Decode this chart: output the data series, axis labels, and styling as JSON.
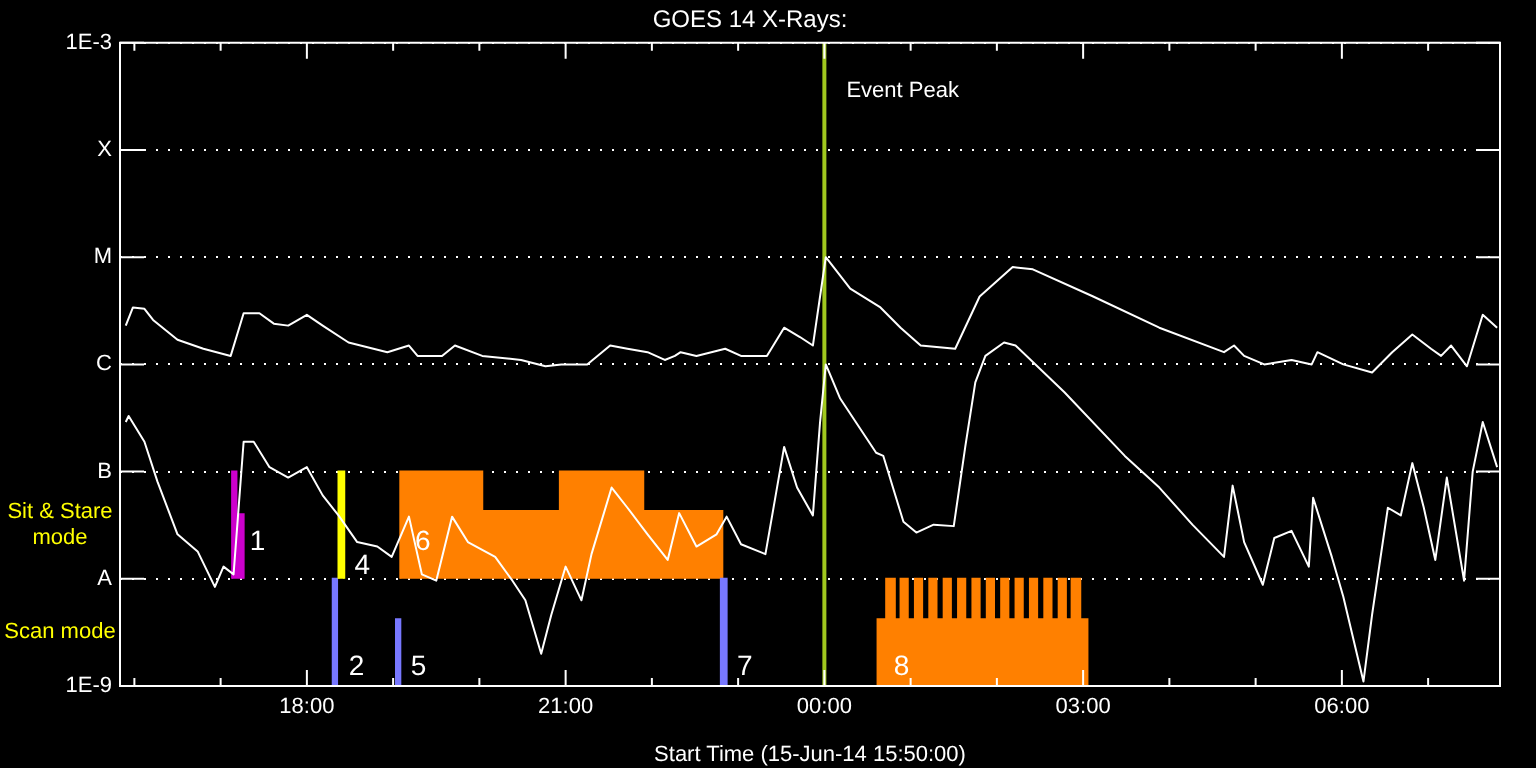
{
  "chart_data": {
    "type": "line",
    "title": "GOES 14 X-Rays:",
    "xlabel": "Start Time (15-Jun-14 15:50:00)",
    "xlim": [
      "--06-15T15:50",
      "--06-16T07:50"
    ],
    "xticks": [
      {
        "value": "--06-15T16:00",
        "label": null
      },
      {
        "value": "--06-15T17:00",
        "label": null
      },
      {
        "value": "--06-15T18:00",
        "label": "18:00"
      },
      {
        "value": "--06-15T19:00",
        "label": null
      },
      {
        "value": "--06-15T20:00",
        "label": null
      },
      {
        "value": "--06-15T21:00",
        "label": "21:00"
      },
      {
        "value": "--06-15T22:00",
        "label": null
      },
      {
        "value": "--06-15T23:00",
        "label": null
      },
      {
        "value": "--06-16T00:00",
        "label": "00:00"
      },
      {
        "value": "--06-16T01:00",
        "label": null
      },
      {
        "value": "--06-16T02:00",
        "label": null
      },
      {
        "value": "--06-16T03:00",
        "label": "03:00"
      },
      {
        "value": "--06-16T04:00",
        "label": null
      },
      {
        "value": "--06-16T05:00",
        "label": null
      },
      {
        "value": "--06-16T06:00",
        "label": "06:00"
      },
      {
        "value": "--06-16T07:00",
        "label": null
      }
    ],
    "ylim": [
      1e-09,
      0.001
    ],
    "yticks": [
      {
        "value": 1e-09,
        "label": "1E-9"
      },
      {
        "value": 1e-08,
        "label": "A"
      },
      {
        "value": 1e-07,
        "label": "B"
      },
      {
        "value": 1e-06,
        "label": "C"
      },
      {
        "value": 1e-05,
        "label": "M"
      },
      {
        "value": 0.0001,
        "label": "X"
      },
      {
        "value": 0.001,
        "label": "1E-3"
      }
    ],
    "log": true,
    "grid": "y",
    "marker": "none",
    "series": [
      {
        "type": "line",
        "color": "#ffffff",
        "x": [
          "--06-15T15:54",
          "--06-15T15:59",
          "--06-15T16:07",
          "--06-15T16:13",
          "--06-15T16:30",
          "--06-15T16:48",
          "--06-15T17:07",
          "--06-15T17:16",
          "--06-15T17:27",
          "--06-15T17:37",
          "--06-15T17:47",
          "--06-15T18:00",
          "--06-15T18:11",
          "--06-15T18:29",
          "--06-15T18:56",
          "--06-15T19:11",
          "--06-15T19:17",
          "--06-15T19:34",
          "--06-15T19:43",
          "--06-15T20:02",
          "--06-15T20:29",
          "--06-15T20:46",
          "--06-15T20:57",
          "--06-15T21:15",
          "--06-15T21:31",
          "--06-15T21:43",
          "--06-15T21:57",
          "--06-15T22:09",
          "--06-15T22:16",
          "--06-15T22:20",
          "--06-15T22:31",
          "--06-15T22:51",
          "--06-15T23:02",
          "--06-15T23:20",
          "--06-15T23:32",
          "--06-15T23:43",
          "--06-15T23:52",
          "--06-15T23:57",
          "--06-16T00:01",
          "--06-16T00:18",
          "--06-16T00:39",
          "--06-16T00:53",
          "--06-16T01:07",
          "--06-16T01:31",
          "--06-16T01:48",
          "--06-16T02:11",
          "--06-16T02:25",
          "--06-16T03:07",
          "--06-16T03:53",
          "--06-16T04:38",
          "--06-16T04:45",
          "--06-16T04:52",
          "--06-16T05:06",
          "--06-16T05:25",
          "--06-16T05:39",
          "--06-16T05:43",
          "--06-16T06:01",
          "--06-16T06:21",
          "--06-16T06:35",
          "--06-16T06:49",
          "--06-16T07:02",
          "--06-16T07:09",
          "--06-16T07:16",
          "--06-16T07:27",
          "--06-16T07:38",
          "--06-16T07:48"
        ],
        "values": [
          2.3e-06,
          3.4e-06,
          3.3e-06,
          2.6e-06,
          1.7e-06,
          1.4e-06,
          1.2e-06,
          3e-06,
          3e-06,
          2.4e-06,
          2.3e-06,
          2.9e-06,
          2.3e-06,
          1.6e-06,
          1.3e-06,
          1.5e-06,
          1.2e-06,
          1.2e-06,
          1.5e-06,
          1.2e-06,
          1.1e-06,
          9.6e-07,
          1e-06,
          1e-06,
          1.5e-06,
          1.4e-06,
          1.3e-06,
          1.1e-06,
          1.2e-06,
          1.3e-06,
          1.2e-06,
          1.4e-06,
          1.2e-06,
          1.2e-06,
          2.2e-06,
          1.8e-06,
          1.5e-06,
          4.3e-06,
          1e-05,
          5.1e-06,
          3.4e-06,
          2.2e-06,
          1.5e-06,
          1.4e-06,
          4.3e-06,
          8.1e-06,
          7.7e-06,
          4.3e-06,
          2.2e-06,
          1.3e-06,
          1.5e-06,
          1.2e-06,
          1e-06,
          1.1e-06,
          1e-06,
          1.3e-06,
          1e-06,
          8.4e-07,
          1.3e-06,
          1.9e-06,
          1.4e-06,
          1.2e-06,
          1.5e-06,
          9.6e-07,
          2.9e-06,
          2.2e-06
        ]
      },
      {
        "type": "line",
        "color": "#ffffff",
        "x": [
          "--06-15T15:54",
          "--06-15T15:56",
          "--06-15T16:07",
          "--06-15T16:16",
          "--06-15T16:30",
          "--06-15T16:44",
          "--06-15T16:56",
          "--06-15T17:02",
          "--06-15T17:09",
          "--06-15T17:16",
          "--06-15T17:23",
          "--06-15T17:34",
          "--06-15T17:47",
          "--06-15T18:00",
          "--06-15T18:11",
          "--06-15T18:22",
          "--06-15T18:35",
          "--06-15T18:49",
          "--06-15T18:59",
          "--06-15T19:11",
          "--06-15T19:20",
          "--06-15T19:30",
          "--06-15T19:41",
          "--06-15T19:52",
          "--06-15T20:11",
          "--06-15T20:23",
          "--06-15T20:32",
          "--06-15T20:43",
          "--06-15T20:50",
          "--06-15T21:00",
          "--06-15T21:11",
          "--06-15T21:18",
          "--06-15T21:32",
          "--06-15T21:43",
          "--06-15T21:57",
          "--06-15T22:11",
          "--06-15T22:19",
          "--06-15T22:31",
          "--06-15T22:45",
          "--06-15T22:52",
          "--06-15T23:02",
          "--06-15T23:19",
          "--06-15T23:32",
          "--06-15T23:41",
          "--06-15T23:52",
          "--06-15T23:57",
          "--06-16T00:01",
          "--06-16T00:11",
          "--06-16T00:36",
          "--06-16T00:41",
          "--06-16T00:55",
          "--06-16T01:04",
          "--06-16T01:16",
          "--06-16T01:30",
          "--06-16T01:38",
          "--06-16T01:45",
          "--06-16T01:52",
          "--06-16T02:05",
          "--06-16T02:13",
          "--06-16T02:47",
          "--06-16T03:29",
          "--06-16T03:53",
          "--06-16T04:16",
          "--06-16T04:38",
          "--06-16T04:44",
          "--06-16T04:52",
          "--06-16T05:05",
          "--06-16T05:13",
          "--06-16T05:25",
          "--06-16T05:37",
          "--06-16T05:40",
          "--06-16T05:53",
          "--06-16T06:01",
          "--06-16T06:15",
          "--06-16T06:21",
          "--06-16T06:32",
          "--06-16T06:41",
          "--06-16T06:49",
          "--06-16T06:57",
          "--06-16T07:05",
          "--06-16T07:13",
          "--06-16T07:25",
          "--06-16T07:31",
          "--06-16T07:38",
          "--06-16T07:48"
        ],
        "values": [
          2.9e-07,
          3.3e-07,
          1.9e-07,
          8.1e-08,
          2.6e-08,
          1.8e-08,
          8.4e-09,
          1.3e-08,
          1.1e-08,
          1.9e-07,
          1.9e-07,
          1.1e-07,
          8.8e-08,
          1.1e-07,
          6e-08,
          3.9e-08,
          2.2e-08,
          2e-08,
          1.6e-08,
          3.8e-08,
          1.1e-08,
          9.6e-09,
          3.8e-08,
          2.2e-08,
          1.6e-08,
          9.6e-09,
          6.3e-09,
          2e-09,
          4.6e-09,
          1.3e-08,
          6.3e-09,
          1.7e-08,
          7.1e-08,
          4.6e-08,
          2.6e-08,
          1.5e-08,
          4.1e-08,
          2e-08,
          2.6e-08,
          3.8e-08,
          2.1e-08,
          1.7e-08,
          1.7e-07,
          7.1e-08,
          3.9e-08,
          2.9e-07,
          1e-06,
          4.8e-07,
          1.5e-07,
          1.4e-07,
          3.4e-08,
          2.7e-08,
          3.2e-08,
          3.1e-08,
          1.7e-07,
          6.8e-07,
          1.2e-06,
          1.6e-06,
          1.5e-06,
          5.5e-07,
          1.4e-07,
          7.1e-08,
          3.2e-08,
          1.6e-08,
          7.4e-08,
          2.2e-08,
          8.8e-09,
          2.4e-08,
          2.8e-08,
          1.3e-08,
          5.7e-08,
          1.6e-08,
          6.8e-09,
          1.1e-09,
          4.6e-09,
          4.6e-08,
          3.9e-08,
          1.2e-07,
          4.6e-08,
          1.5e-08,
          8.8e-08,
          9.6e-09,
          1e-07,
          2.9e-07,
          1.1e-07
        ]
      },
      {
        "type": "area",
        "color": "#cc00cc",
        "x": [
          "--06-15T17:08",
          "--06-15T17:08",
          "--06-15T17:11",
          "--06-15T17:11",
          "--06-15T17:16",
          "--06-15T17:16"
        ],
        "values": [
          1e-08,
          1e-07,
          1e-07,
          4e-08,
          4e-08,
          1e-08
        ]
      },
      {
        "type": "area",
        "color": "#ffff00",
        "x": [
          "--06-15T18:22",
          "--06-15T18:22",
          "--06-15T18:26",
          "--06-15T18:26"
        ],
        "values": [
          1e-08,
          1e-07,
          1e-07,
          1e-08
        ]
      },
      {
        "type": "area",
        "color": "#7878ff",
        "x": [
          "--06-15T18:18",
          "--06-15T18:18",
          "--06-15T18:21",
          "--06-15T18:21"
        ],
        "values": [
          1e-09,
          1e-08,
          1e-08,
          1e-09
        ]
      },
      {
        "type": "area",
        "color": "#7878ff",
        "x": [
          "--06-15T19:02",
          "--06-15T19:02",
          "--06-15T19:05",
          "--06-15T19:05"
        ],
        "values": [
          1e-09,
          4.2e-09,
          4.2e-09,
          1e-09
        ]
      },
      {
        "type": "area",
        "color": "#7878ff",
        "x": [
          "--06-15T22:48",
          "--06-15T22:48",
          "--06-15T22:52",
          "--06-15T22:52"
        ],
        "values": [
          1e-09,
          1e-08,
          1e-08,
          1e-09
        ]
      },
      {
        "type": "area",
        "color": "#ff8000",
        "x": [
          "--06-15T19:05",
          "--06-15T19:05",
          "--06-15T20:02",
          "--06-15T20:02",
          "--06-15T20:56",
          "--06-15T20:56",
          "--06-15T21:54",
          "--06-15T21:54",
          "--06-15T22:49",
          "--06-15T22:49"
        ],
        "values": [
          1e-08,
          1e-07,
          1e-07,
          4.3e-08,
          4.3e-08,
          1e-07,
          1e-07,
          4.3e-08,
          4.3e-08,
          1e-08
        ]
      },
      {
        "type": "area",
        "color": "#ff8000",
        "x": [
          "--06-16T00:37",
          "--06-16T00:37",
          "--06-16T00:43",
          "--06-16T00:43",
          "--06-16T00:49",
          "--06-16T00:49",
          "--06-16T00:53",
          "--06-16T00:53",
          "--06-16T00:58",
          "--06-16T00:58",
          "--06-16T01:03",
          "--06-16T01:03",
          "--06-16T01:08",
          "--06-16T01:08",
          "--06-16T01:13",
          "--06-16T01:13",
          "--06-16T01:18",
          "--06-16T01:18",
          "--06-16T01:23",
          "--06-16T01:23",
          "--06-16T01:28",
          "--06-16T01:28",
          "--06-16T01:33",
          "--06-16T01:33",
          "--06-16T01:38",
          "--06-16T01:38",
          "--06-16T01:43",
          "--06-16T01:43",
          "--06-16T01:48",
          "--06-16T01:48",
          "--06-16T01:53",
          "--06-16T01:53",
          "--06-16T01:58",
          "--06-16T01:58",
          "--06-16T02:03",
          "--06-16T02:03",
          "--06-16T02:08",
          "--06-16T02:08",
          "--06-16T02:13",
          "--06-16T02:13",
          "--06-16T02:18",
          "--06-16T02:18",
          "--06-16T02:23",
          "--06-16T02:23",
          "--06-16T02:28",
          "--06-16T02:28",
          "--06-16T02:33",
          "--06-16T02:33",
          "--06-16T02:38",
          "--06-16T02:38",
          "--06-16T02:43",
          "--06-16T02:43",
          "--06-16T02:48",
          "--06-16T02:48",
          "--06-16T02:52",
          "--06-16T02:52",
          "--06-16T02:58",
          "--06-16T02:58",
          "--06-16T03:03",
          "--06-16T03:03"
        ],
        "values": [
          1e-09,
          4.2e-09,
          4.2e-09,
          1e-08,
          1e-08,
          4.2e-09,
          4.2e-09,
          1e-08,
          1e-08,
          4.2e-09,
          4.2e-09,
          1e-08,
          1e-08,
          4.2e-09,
          4.2e-09,
          1e-08,
          1e-08,
          4.2e-09,
          4.2e-09,
          1e-08,
          1e-08,
          4.2e-09,
          4.2e-09,
          1e-08,
          1e-08,
          4.2e-09,
          4.2e-09,
          1e-08,
          1e-08,
          4.2e-09,
          4.2e-09,
          1e-08,
          1e-08,
          4.2e-09,
          4.2e-09,
          1e-08,
          1e-08,
          4.2e-09,
          4.2e-09,
          1e-08,
          1e-08,
          4.2e-09,
          4.2e-09,
          1e-08,
          1e-08,
          4.2e-09,
          4.2e-09,
          1e-08,
          1e-08,
          4.2e-09,
          4.2e-09,
          1e-08,
          1e-08,
          4.2e-09,
          4.2e-09,
          1e-08,
          1e-08,
          4.2e-09,
          4.2e-09,
          1e-09
        ]
      }
    ],
    "ref_lines": [
      {
        "axis": "x",
        "value": "--06-16T00:00",
        "label": "Event Peak",
        "color": "#a0c81e"
      }
    ],
    "annotations": [
      {
        "text": "1",
        "x": "--06-15T17:16",
        "y": 2.2e-08
      },
      {
        "text": "2",
        "x": "--06-15T18:25",
        "y": 1.5e-09
      },
      {
        "text": "4",
        "x": "--06-15T18:29",
        "y": 1.3e-08
      },
      {
        "text": "5",
        "x": "--06-15T19:08",
        "y": 1.5e-09
      },
      {
        "text": "6",
        "x": "--06-15T19:11",
        "y": 2.2e-08
      },
      {
        "text": "7",
        "x": "--06-15T22:55",
        "y": 1.5e-09
      },
      {
        "text": "8",
        "x": "--06-16T00:44",
        "y": 1.5e-09
      },
      "Sit & Stare mode",
      "Scan mode"
    ]
  }
}
